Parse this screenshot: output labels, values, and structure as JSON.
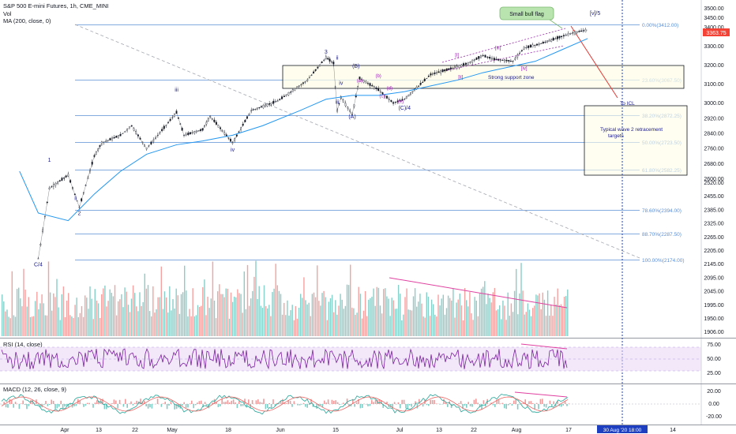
{
  "header": {
    "symbol_line": "S&P 500 E-mini Futures, 1h, CME_MINI",
    "vol_label": "Vol",
    "ma_label": "MA (200, close, 0)",
    "rsi_label": "RSI (14, close)",
    "macd_label": "MACD (12, 26, close, 9)"
  },
  "colors": {
    "candle": "#131722",
    "ma": "#2196f3",
    "fib": "#5b8fd6",
    "wave": "#1a1a8c",
    "subwave": "#9c27b0",
    "rsi": "#7b1fa2",
    "macd": "#26a69a",
    "signal": "#ef5350",
    "divergence": "#e040a0",
    "price_tag": "#f44336",
    "date_tag": "#1e3fbf"
  },
  "chart_data": {
    "type": "line",
    "title": "S&P 500 E-mini Futures, 1h, CME_MINI",
    "series": [
      {
        "name": "S&P 500 E-mini Futures",
        "x": [
          "2020-03-23",
          "2020-03-26",
          "2020-03-31",
          "2020-04-03",
          "2020-04-07",
          "2020-04-09",
          "2020-04-14",
          "2020-04-17",
          "2020-04-21",
          "2020-04-24",
          "2020-04-29",
          "2020-05-01",
          "2020-05-06",
          "2020-05-08",
          "2020-05-14",
          "2020-05-19",
          "2020-05-26",
          "2020-05-29",
          "2020-06-03",
          "2020-06-08",
          "2020-06-10",
          "2020-06-11",
          "2020-06-12",
          "2020-06-15",
          "2020-06-17",
          "2020-06-22",
          "2020-06-26",
          "2020-06-29",
          "2020-07-06",
          "2020-07-13",
          "2020-07-16",
          "2020-07-20",
          "2020-07-23",
          "2020-07-28",
          "2020-07-31",
          "2020-08-04",
          "2020-08-10",
          "2020-08-13",
          "2020-08-17"
        ],
        "values": [
          2180,
          2550,
          2620,
          2450,
          2720,
          2790,
          2830,
          2880,
          2760,
          2830,
          2950,
          2830,
          2860,
          2930,
          2790,
          2960,
          3010,
          3050,
          3120,
          3240,
          3210,
          2960,
          3030,
          2940,
          3130,
          3070,
          3000,
          3020,
          3150,
          3190,
          3210,
          3250,
          3230,
          3220,
          3290,
          3310,
          3350,
          3370,
          3385
        ]
      },
      {
        "name": "MA (200, close, 0)",
        "x": [
          "2020-03-18",
          "2020-03-23",
          "2020-03-31",
          "2020-04-07",
          "2020-04-14",
          "2020-04-21",
          "2020-04-29",
          "2020-05-06",
          "2020-05-14",
          "2020-05-22",
          "2020-06-01",
          "2020-06-08",
          "2020-06-15",
          "2020-06-22",
          "2020-06-29",
          "2020-07-06",
          "2020-07-13",
          "2020-07-20",
          "2020-07-27",
          "2020-08-03",
          "2020-08-10",
          "2020-08-17"
        ],
        "values": [
          2640,
          2420,
          2380,
          2520,
          2640,
          2730,
          2780,
          2800,
          2830,
          2880,
          2960,
          3020,
          3040,
          3040,
          3060,
          3090,
          3120,
          3160,
          3190,
          3220,
          3280,
          3340
        ]
      }
    ],
    "fib_levels": [
      {
        "pct": "0.00%",
        "value": 3412.0,
        "label": "0.00%(3412.00)"
      },
      {
        "pct": "23.60%",
        "value": 3067.5,
        "label": "23.60%(3067.50)"
      },
      {
        "pct": "38.20%",
        "value": 2872.25,
        "label": "38.20%(2872.25)"
      },
      {
        "pct": "50.00%",
        "value": 2723.5,
        "label": "50.00%(2723.50)"
      },
      {
        "pct": "61.80%",
        "value": 2582.25,
        "label": "61.80%(2582.25)"
      },
      {
        "pct": "78.60%",
        "value": 2394.0,
        "label": "78.60%(2394.00)"
      },
      {
        "pct": "88.70%",
        "value": 2287.5,
        "label": "88.70%(2287.50)"
      },
      {
        "pct": "100.00%",
        "value": 2174.0,
        "label": "100.00%(2174.00)"
      }
    ],
    "y_ticks": [
      "3500.00",
      "3450.00",
      "3400.00",
      "3300.00",
      "3200.00",
      "3100.00",
      "3000.00",
      "2920.00",
      "2840.00",
      "2760.00",
      "2680.00",
      "2600.00",
      "2520.00",
      "2455.00",
      "2385.00",
      "2325.00",
      "2265.00",
      "2205.00",
      "2145.00",
      "2095.00",
      "2045.00",
      "1995.00",
      "1950.00",
      "1906.00"
    ],
    "x_ticks": [
      "Apr",
      "13",
      "22",
      "May",
      "18",
      "Jun",
      "15",
      "Jul",
      "13",
      "22",
      "Aug",
      "17"
    ],
    "current_price": "3363.75",
    "crosshair_date": "30 Aug '20   18:00",
    "rsi_ticks": [
      "75.00",
      "50.00",
      "25.00"
    ],
    "macd_ticks": [
      "20.00",
      "0.00",
      "-20.00"
    ],
    "annotations": {
      "bull_flag": "Small bull flag",
      "support_zone": "Strong support zone",
      "to_icl": "To ICL",
      "retracement": [
        "Typical wave 2 retracement",
        "targets"
      ],
      "waves": [
        {
          "label": "C/4",
          "date": "2020-03-23",
          "price": 2140
        },
        {
          "label": "1",
          "date": "2020-03-26",
          "price": 2690
        },
        {
          "label": "i",
          "date": "2020-03-30",
          "price": 2590
        },
        {
          "label": "ii",
          "date": "2020-04-02",
          "price": 2488
        },
        {
          "label": "2",
          "date": "2020-04-03",
          "price": 2410
        },
        {
          "label": "iii",
          "date": "2020-04-29",
          "price": 3060
        },
        {
          "label": "iv",
          "date": "2020-05-14",
          "price": 2745
        },
        {
          "label": "3",
          "date": "2020-06-08",
          "price": 3260
        },
        {
          "label": "ii",
          "date": "2020-06-11",
          "price": 3230
        },
        {
          "label": "iii",
          "date": "2020-06-11",
          "price": 2995
        },
        {
          "label": "iv",
          "date": "2020-06-12",
          "price": 3095
        },
        {
          "label": "(B)",
          "date": "2020-06-16",
          "price": 3185
        },
        {
          "label": "(A)",
          "date": "2020-06-15",
          "price": 2920
        },
        {
          "label": "(C)/4",
          "date": "2020-06-29",
          "price": 2965
        },
        {
          "label": "[v]/5",
          "date": "2020-08-19",
          "price": 3465
        }
      ],
      "subwaves": [
        {
          "label": "(a)",
          "date": "2020-06-17",
          "price": 3110
        },
        {
          "label": "(b)",
          "date": "2020-06-22",
          "price": 3135
        },
        {
          "label": "(c)",
          "date": "2020-06-23",
          "price": 3030
        },
        {
          "label": "(d)",
          "date": "2020-06-25",
          "price": 3070
        },
        {
          "label": "(e)",
          "date": "2020-06-28",
          "price": 3000
        },
        {
          "label": "[i]",
          "date": "2020-07-13",
          "price": 3245
        },
        {
          "label": "[ii]",
          "date": "2020-07-14",
          "price": 3130
        },
        {
          "label": "[iii]",
          "date": "2020-07-24",
          "price": 3283
        },
        {
          "label": "[iv]",
          "date": "2020-07-31",
          "price": 3175
        }
      ]
    }
  }
}
